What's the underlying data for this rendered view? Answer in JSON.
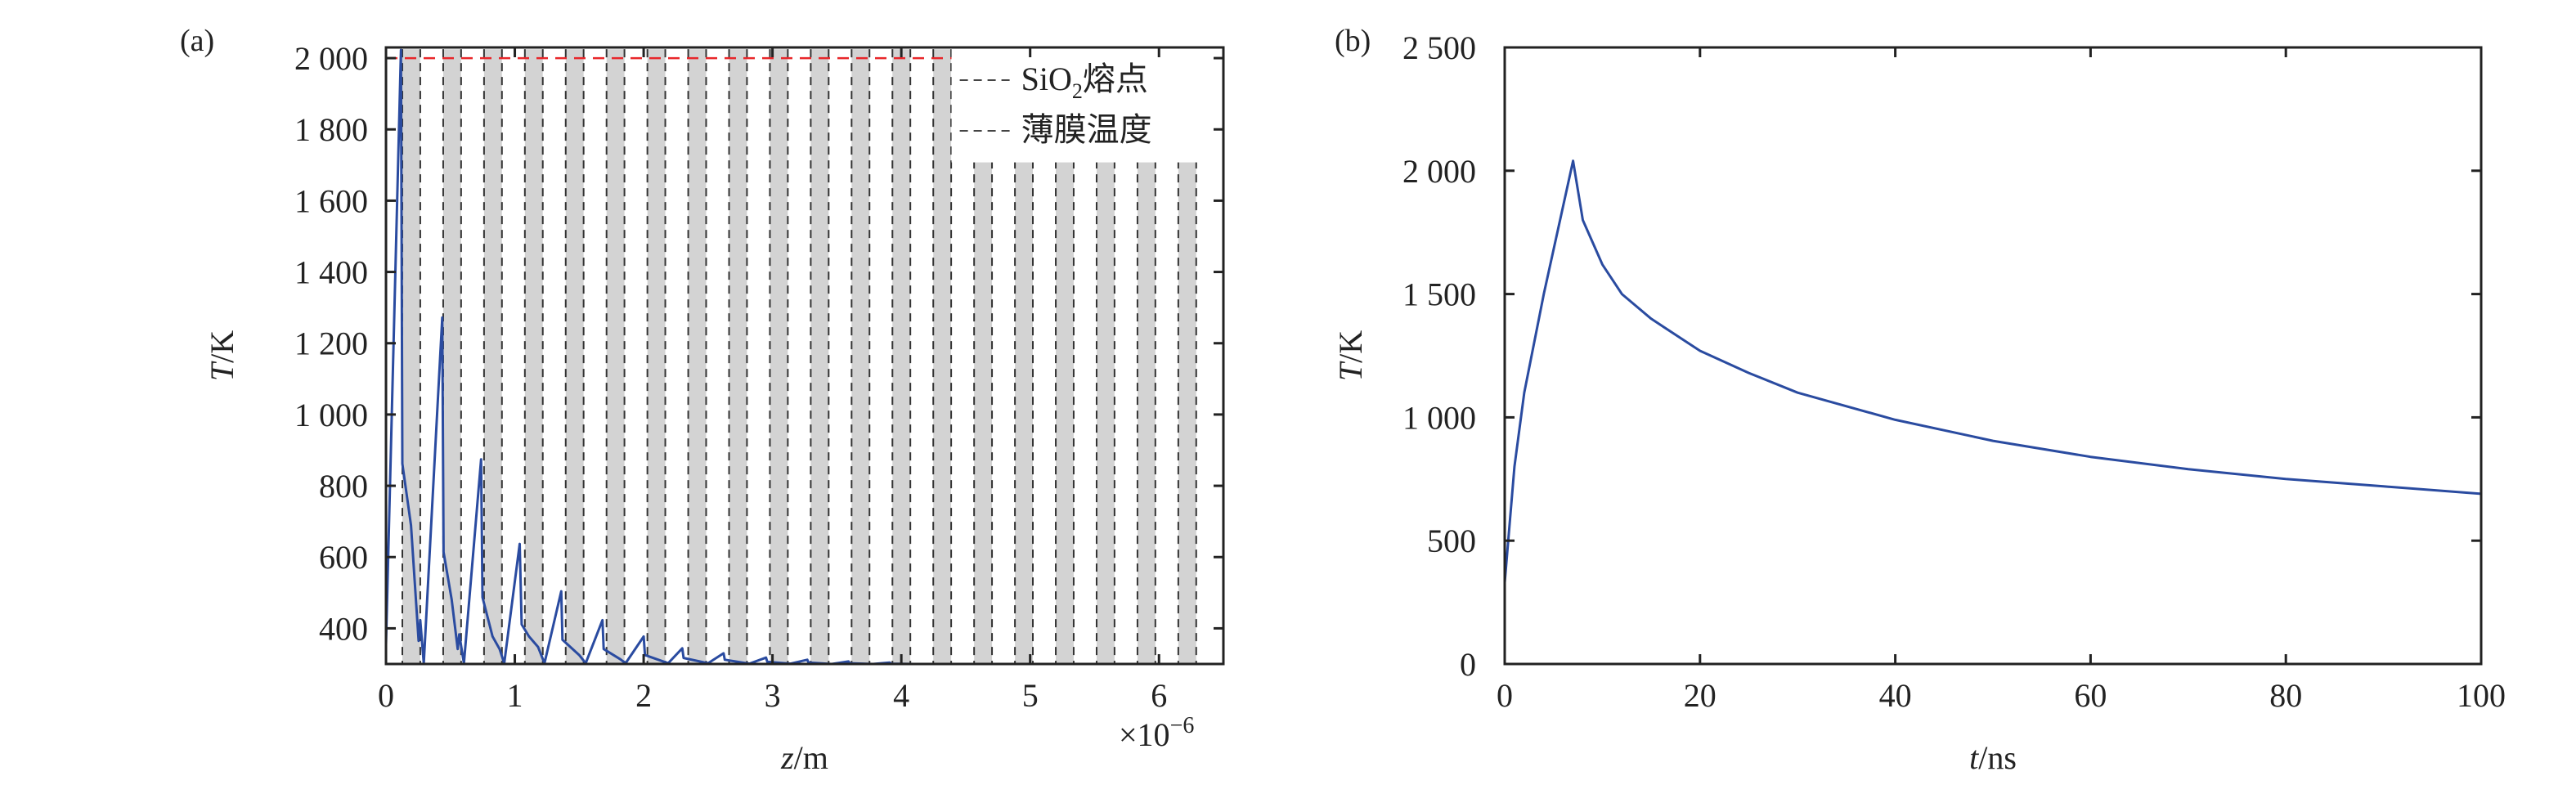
{
  "chart_data": [
    {
      "panel_label": "(a)",
      "type": "line",
      "xlabel_italic": "z",
      "xlabel_unit": "/m",
      "ylabel_italic": "T",
      "ylabel_unit": "/K",
      "x_multiplier": "×10",
      "x_multiplier_exp": "−6",
      "xlim": [
        0,
        6.5
      ],
      "ylim": [
        300,
        2030
      ],
      "xticks": [
        0,
        1,
        2,
        3,
        4,
        5,
        6
      ],
      "xtick_labels": [
        "0",
        "1",
        "2",
        "3",
        "4",
        "5",
        "6"
      ],
      "yticks": [
        400,
        600,
        800,
        1000,
        1200,
        1400,
        1600,
        1800,
        2000
      ],
      "ytick_labels": [
        "400",
        "600",
        "800",
        "1 000",
        "1 200",
        "1 400",
        "1 600",
        "1 800",
        "2 000"
      ],
      "grid": false,
      "legend_position": "top-right",
      "legend": [
        {
          "label_main": "SiO",
          "label_sub": "2",
          "label_tail": "熔点",
          "style": "dashed",
          "color": "#444444"
        },
        {
          "label_main": "薄膜温度",
          "label_sub": "",
          "label_tail": "",
          "style": "dashed",
          "color": "#444444"
        }
      ],
      "reference_line": {
        "y": 2000,
        "x_range": [
          0,
          4.39
        ],
        "color": "#e8262a",
        "style": "dashed"
      },
      "layers_color": "#d3d3d3",
      "layers_top": 2025,
      "layers": [
        [
          0.127,
          0.266
        ],
        [
          0.444,
          0.583
        ],
        [
          0.761,
          0.9
        ],
        [
          1.078,
          1.217
        ],
        [
          1.395,
          1.534
        ],
        [
          1.712,
          1.851
        ],
        [
          2.029,
          2.168
        ],
        [
          2.346,
          2.485
        ],
        [
          2.663,
          2.802
        ],
        [
          2.98,
          3.119
        ],
        [
          3.297,
          3.436
        ],
        [
          3.614,
          3.753
        ],
        [
          3.931,
          4.07
        ],
        [
          4.248,
          4.387
        ],
        [
          4.565,
          4.704
        ],
        [
          4.882,
          5.021
        ],
        [
          5.199,
          5.338
        ],
        [
          5.516,
          5.655
        ],
        [
          5.833,
          5.972
        ],
        [
          6.15,
          6.289
        ]
      ],
      "series": [
        {
          "color": "#2a4ba0",
          "x": [
            0,
            0.116,
            0.127,
            0.194,
            0.253,
            0.266,
            0.293,
            0.437,
            0.447,
            0.51,
            0.557,
            0.569,
            0.605,
            0.738,
            0.749,
            0.827,
            0.882,
            0.918,
            1.038,
            1.053,
            1.11,
            1.18,
            1.23,
            1.36,
            1.37,
            1.5,
            1.55,
            1.68,
            1.69,
            1.82,
            1.86,
            2.0,
            2.01,
            2.19,
            2.3,
            2.31,
            2.5,
            2.62,
            2.63,
            2.82,
            2.95,
            2.96,
            3.14,
            3.27,
            3.28,
            3.46,
            3.59,
            3.6,
            3.78,
            3.91,
            3.92,
            4.1,
            6.3
          ],
          "y": [
            354,
            2023,
            862,
            689,
            365,
            423,
            302,
            1272,
            614,
            481,
            342,
            383,
            302,
            874,
            487,
            377,
            342,
            302,
            637,
            411,
            377,
            348,
            302,
            504,
            368,
            325,
            302,
            423,
            342,
            313,
            302,
            377,
            325,
            302,
            344,
            317,
            302,
            330,
            312,
            301,
            318,
            306,
            301,
            312,
            304,
            300,
            307,
            302,
            300,
            304,
            301,
            300,
            300
          ]
        }
      ]
    },
    {
      "panel_label": "(b)",
      "type": "line",
      "xlabel_italic": "t",
      "xlabel_unit": "/ns",
      "ylabel_italic": "T",
      "ylabel_unit": "/K",
      "xlim": [
        0,
        100
      ],
      "ylim": [
        0,
        2500
      ],
      "xticks": [
        0,
        20,
        40,
        60,
        80,
        100
      ],
      "xtick_labels": [
        "0",
        "20",
        "40",
        "60",
        "80",
        "100"
      ],
      "yticks": [
        0,
        500,
        1000,
        1500,
        2000,
        2500
      ],
      "ytick_labels": [
        "0",
        "500",
        "1 000",
        "1 500",
        "2 000",
        "2 500"
      ],
      "grid": false,
      "series": [
        {
          "color": "#2a4ba0",
          "x": [
            0,
            1,
            2,
            4,
            7,
            8,
            10,
            12,
            15,
            20,
            25,
            30,
            40,
            50,
            60,
            70,
            80,
            90,
            100
          ],
          "y": [
            330,
            800,
            1100,
            1500,
            2040,
            1800,
            1620,
            1500,
            1400,
            1270,
            1180,
            1100,
            990,
            905,
            840,
            790,
            750,
            720,
            690
          ]
        }
      ]
    }
  ]
}
